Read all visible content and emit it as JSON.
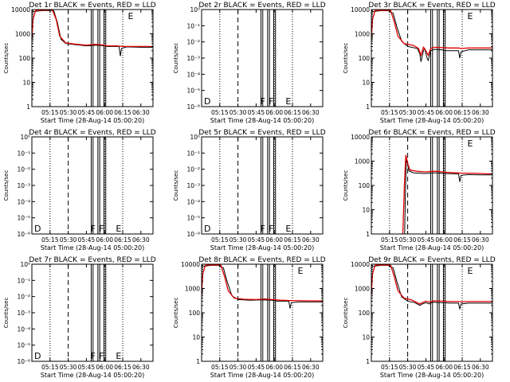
{
  "figure": {
    "x_ticks": [
      "05:15",
      "05:30",
      "05:45",
      "06:00",
      "06:15",
      "06:30"
    ],
    "y_ticks_log": [
      "1",
      "10",
      "100",
      "1000",
      "10000"
    ],
    "y_ticks_empty": [
      "10⁰",
      "10⁻¹",
      "10⁻²",
      "10⁻³",
      "10⁻⁴",
      "10⁻⁵",
      "10⁻⁶"
    ],
    "colors": {
      "events": "#000000",
      "lld": "#e00000"
    },
    "x_range_minutes": [
      0,
      100
    ],
    "dotted_lines_min": [
      15,
      60,
      75
    ],
    "dashed_line_min": 30,
    "solid_lines_min": [
      49,
      50.5,
      54.5,
      56,
      59.5,
      61
    ]
  },
  "chart_data": [
    {
      "type": "line",
      "title": "Det 1r BLACK = Events, RED = LLD",
      "xlabel": "Start Time (28-Aug-14 05:00:20)",
      "ylabel": "Counts/sec",
      "scale": "log",
      "ylim": [
        1,
        10000
      ],
      "markers": [
        {
          "t": 78,
          "text": "E"
        }
      ],
      "series": [
        {
          "name": "Events",
          "points": [
            [
              0,
              8000
            ],
            [
              3,
              8500
            ],
            [
              8,
              9000
            ],
            [
              14,
              9200
            ],
            [
              18,
              9000
            ],
            [
              21,
              3000
            ],
            [
              24,
              600
            ],
            [
              28,
              400
            ],
            [
              35,
              360
            ],
            [
              45,
              320
            ],
            [
              50,
              330
            ],
            [
              52,
              340
            ],
            [
              58,
              330
            ],
            [
              62,
              300
            ],
            [
              68,
              300
            ],
            [
              72,
              300
            ],
            [
              73,
              120
            ],
            [
              74,
              250
            ],
            [
              78,
              290
            ],
            [
              90,
              280
            ],
            [
              100,
              280
            ]
          ]
        },
        {
          "name": "LLD",
          "points": [
            [
              0,
              600
            ],
            [
              1,
              4000
            ],
            [
              3,
              9000
            ],
            [
              8,
              9500
            ],
            [
              14,
              9800
            ],
            [
              17,
              9500
            ],
            [
              20,
              4000
            ],
            [
              23,
              800
            ],
            [
              28,
              420
            ],
            [
              35,
              380
            ],
            [
              45,
              340
            ],
            [
              50,
              360
            ],
            [
              52,
              370
            ],
            [
              58,
              350
            ],
            [
              62,
              320
            ],
            [
              70,
              320
            ],
            [
              75,
              300
            ],
            [
              90,
              300
            ],
            [
              100,
              300
            ]
          ]
        }
      ]
    },
    {
      "type": "line",
      "title": "Det 2r BLACK = Events, RED = LLD",
      "xlabel": "Start Time (28-Aug-14 05:00:20)",
      "ylabel": "Counts/sec",
      "scale": "empty",
      "ylim": [
        1e-06,
        1
      ],
      "markers": [
        {
          "t": 0,
          "text": "D"
        },
        {
          "t": 47,
          "text": "F"
        },
        {
          "t": 54,
          "text": "F"
        },
        {
          "t": 68,
          "text": "E"
        }
      ],
      "series": []
    },
    {
      "type": "line",
      "title": "Det 3r BLACK = Events, RED = LLD",
      "xlabel": "Start Time (28-Aug-14 05:00:20)",
      "ylabel": "Counts/sec",
      "scale": "log",
      "ylim": [
        1,
        10000
      ],
      "markers": [
        {
          "t": 78,
          "text": "E"
        }
      ],
      "series": [
        {
          "name": "Events",
          "points": [
            [
              0,
              8000
            ],
            [
              3,
              8500
            ],
            [
              8,
              9000
            ],
            [
              14,
              9000
            ],
            [
              18,
              7000
            ],
            [
              21,
              2000
            ],
            [
              25,
              500
            ],
            [
              30,
              300
            ],
            [
              38,
              250
            ],
            [
              40,
              150
            ],
            [
              41,
              70
            ],
            [
              43,
              200
            ],
            [
              44,
              250
            ],
            [
              46,
              100
            ],
            [
              47,
              80
            ],
            [
              49,
              200
            ],
            [
              52,
              230
            ],
            [
              58,
              220
            ],
            [
              62,
              200
            ],
            [
              68,
              200
            ],
            [
              72,
              200
            ],
            [
              73,
              100
            ],
            [
              74,
              180
            ],
            [
              80,
              220
            ],
            [
              100,
              220
            ]
          ]
        },
        {
          "name": "LLD",
          "points": [
            [
              0,
              600
            ],
            [
              1,
              4000
            ],
            [
              3,
              9000
            ],
            [
              10,
              9500
            ],
            [
              16,
              9000
            ],
            [
              19,
              3000
            ],
            [
              22,
              800
            ],
            [
              27,
              400
            ],
            [
              35,
              330
            ],
            [
              39,
              250
            ],
            [
              41,
              130
            ],
            [
              43,
              280
            ],
            [
              45,
              200
            ],
            [
              47,
              130
            ],
            [
              49,
              250
            ],
            [
              52,
              280
            ],
            [
              58,
              270
            ],
            [
              65,
              260
            ],
            [
              72,
              260
            ],
            [
              74,
              250
            ],
            [
              80,
              260
            ],
            [
              100,
              260
            ]
          ]
        }
      ]
    },
    {
      "type": "line",
      "title": "Det 4r BLACK = Events, RED = LLD",
      "xlabel": "Start Time (28-Aug-14 05:00:20)",
      "ylabel": "Counts/sec",
      "scale": "empty",
      "ylim": [
        1e-06,
        1
      ],
      "markers": [
        {
          "t": 0,
          "text": "D"
        },
        {
          "t": 47,
          "text": "F"
        },
        {
          "t": 54,
          "text": "F"
        },
        {
          "t": 68,
          "text": "E"
        }
      ],
      "series": []
    },
    {
      "type": "line",
      "title": "Det 5r BLACK = Events, RED = LLD",
      "xlabel": "Start Time (28-Aug-14 05:00:20)",
      "ylabel": "Counts/sec",
      "scale": "empty",
      "ylim": [
        1e-06,
        1
      ],
      "markers": [
        {
          "t": 0,
          "text": "D"
        },
        {
          "t": 47,
          "text": "F"
        },
        {
          "t": 54,
          "text": "F"
        },
        {
          "t": 68,
          "text": "E"
        }
      ],
      "series": []
    },
    {
      "type": "line",
      "title": "Det 6r BLACK = Events, RED = LLD",
      "xlabel": "Start Time (28-Aug-14 05:00:20)",
      "ylabel": "Counts/sec",
      "scale": "log",
      "ylim": [
        1,
        10000
      ],
      "markers": [
        {
          "t": 78,
          "text": "E"
        }
      ],
      "series": [
        {
          "name": "Events",
          "points": [
            [
              27.5,
              1
            ],
            [
              28,
              30
            ],
            [
              29,
              1500
            ],
            [
              30,
              700
            ],
            [
              31,
              400
            ],
            [
              35,
              330
            ],
            [
              45,
              310
            ],
            [
              50,
              330
            ],
            [
              55,
              330
            ],
            [
              60,
              310
            ],
            [
              68,
              300
            ],
            [
              72,
              300
            ],
            [
              73,
              140
            ],
            [
              74,
              260
            ],
            [
              80,
              280
            ],
            [
              90,
              270
            ],
            [
              100,
              270
            ]
          ]
        },
        {
          "name": "LLD",
          "points": [
            [
              26,
              1
            ],
            [
              27.5,
              200
            ],
            [
              28.5,
              1800
            ],
            [
              30,
              800
            ],
            [
              32,
              430
            ],
            [
              38,
              380
            ],
            [
              45,
              360
            ],
            [
              50,
              380
            ],
            [
              55,
              380
            ],
            [
              60,
              350
            ],
            [
              70,
              330
            ],
            [
              75,
              320
            ],
            [
              85,
              320
            ],
            [
              95,
              300
            ],
            [
              100,
              300
            ]
          ]
        }
      ]
    },
    {
      "type": "line",
      "title": "Det 7r BLACK = Events, RED = LLD",
      "xlabel": "Start Time (28-Aug-14 05:00:20)",
      "ylabel": "Counts/sec",
      "scale": "empty",
      "ylim": [
        1e-06,
        1
      ],
      "markers": [
        {
          "t": 0,
          "text": "D"
        },
        {
          "t": 47,
          "text": "F"
        },
        {
          "t": 54,
          "text": "F"
        },
        {
          "t": 68,
          "text": "E"
        }
      ],
      "series": []
    },
    {
      "type": "line",
      "title": "Det 8r BLACK = Events, RED = LLD",
      "xlabel": "Start Time (28-Aug-14 05:00:20)",
      "ylabel": "Counts/sec",
      "scale": "log",
      "ylim": [
        1,
        10000
      ],
      "markers": [
        {
          "t": 78,
          "text": "E"
        }
      ],
      "series": [
        {
          "name": "Events",
          "points": [
            [
              0,
              8000
            ],
            [
              3,
              8500
            ],
            [
              8,
              9000
            ],
            [
              14,
              9000
            ],
            [
              18,
              7000
            ],
            [
              21,
              2000
            ],
            [
              25,
              500
            ],
            [
              30,
              350
            ],
            [
              40,
              330
            ],
            [
              50,
              340
            ],
            [
              58,
              330
            ],
            [
              62,
              300
            ],
            [
              68,
              300
            ],
            [
              72,
              300
            ],
            [
              73,
              150
            ],
            [
              74,
              260
            ],
            [
              80,
              280
            ],
            [
              90,
              280
            ],
            [
              100,
              280
            ]
          ]
        },
        {
          "name": "LLD",
          "points": [
            [
              0,
              600
            ],
            [
              1,
              4000
            ],
            [
              3,
              9000
            ],
            [
              10,
              9500
            ],
            [
              16,
              9000
            ],
            [
              19,
              3000
            ],
            [
              22,
              800
            ],
            [
              27,
              400
            ],
            [
              35,
              360
            ],
            [
              45,
              350
            ],
            [
              52,
              370
            ],
            [
              58,
              350
            ],
            [
              65,
              330
            ],
            [
              72,
              320
            ],
            [
              75,
              320
            ],
            [
              90,
              310
            ],
            [
              100,
              310
            ]
          ]
        }
      ]
    },
    {
      "type": "line",
      "title": "Det 9r BLACK = Events, RED = LLD",
      "xlabel": "Start Time (28-Aug-14 05:00:20)",
      "ylabel": "Counts/sec",
      "scale": "log",
      "ylim": [
        1,
        10000
      ],
      "markers": [
        {
          "t": 78,
          "text": "E"
        }
      ],
      "series": [
        {
          "name": "Events",
          "points": [
            [
              0,
              8000
            ],
            [
              3,
              8500
            ],
            [
              8,
              9000
            ],
            [
              14,
              9000
            ],
            [
              18,
              7000
            ],
            [
              21,
              2000
            ],
            [
              25,
              450
            ],
            [
              30,
              300
            ],
            [
              36,
              260
            ],
            [
              40,
              200
            ],
            [
              42,
              230
            ],
            [
              45,
              260
            ],
            [
              48,
              230
            ],
            [
              50,
              270
            ],
            [
              58,
              260
            ],
            [
              65,
              250
            ],
            [
              72,
              250
            ],
            [
              73,
              140
            ],
            [
              74,
              230
            ],
            [
              80,
              250
            ],
            [
              100,
              250
            ]
          ]
        },
        {
          "name": "LLD",
          "points": [
            [
              0,
              600
            ],
            [
              1,
              4000
            ],
            [
              3,
              9000
            ],
            [
              10,
              9500
            ],
            [
              16,
              9000
            ],
            [
              19,
              3000
            ],
            [
              22,
              800
            ],
            [
              27,
              400
            ],
            [
              33,
              340
            ],
            [
              40,
              230
            ],
            [
              42,
              260
            ],
            [
              45,
              300
            ],
            [
              48,
              270
            ],
            [
              52,
              310
            ],
            [
              58,
              300
            ],
            [
              65,
              290
            ],
            [
              72,
              290
            ],
            [
              74,
              280
            ],
            [
              80,
              290
            ],
            [
              100,
              290
            ]
          ]
        }
      ]
    }
  ]
}
